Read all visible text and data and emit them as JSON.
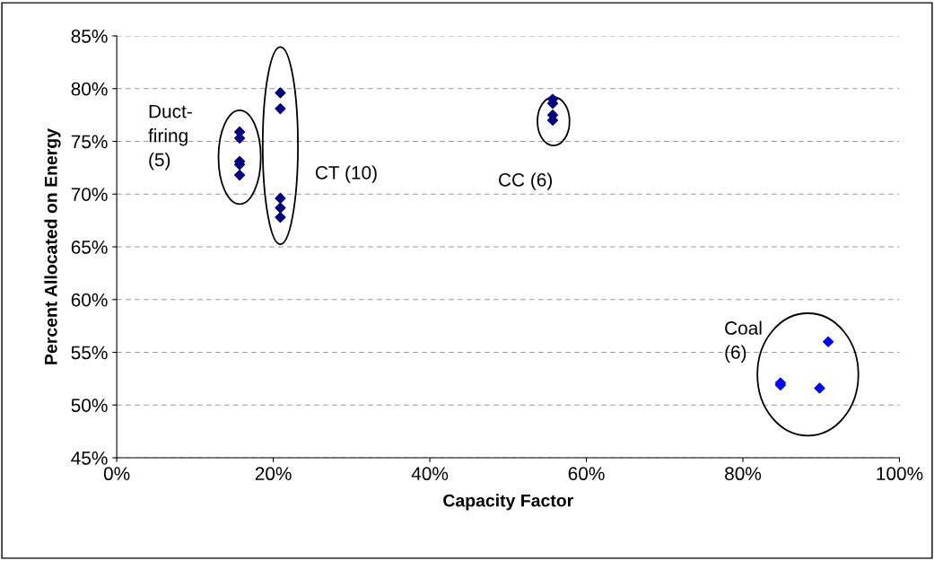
{
  "chart_data": {
    "type": "scatter",
    "xlabel": "Capacity Factor",
    "ylabel": "Percent Allocated on Energy",
    "series": [
      {
        "color": "#000080",
        "x": [
          15.7,
          15.7,
          15.7,
          15.7,
          15.7,
          20.9,
          20.9,
          20.9,
          20.9,
          20.9,
          55.7,
          55.7,
          55.7,
          55.7
        ],
        "values": [
          75.9,
          75.3,
          73.1,
          72.8,
          71.8,
          79.6,
          78.1,
          69.6,
          68.7,
          67.8,
          79.0,
          78.6,
          77.5,
          77.0
        ]
      },
      {
        "color": "#0000ff",
        "x": [
          84.8,
          84.8,
          89.8,
          90.9
        ],
        "values": [
          51.9,
          52.1,
          51.6,
          56.0
        ]
      }
    ],
    "marker": "diamond",
    "grid": "y",
    "xlim": [
      0,
      100
    ],
    "xticks": [
      {
        "value": 0,
        "label": "0%"
      },
      {
        "value": 20,
        "label": "20%"
      },
      {
        "value": 40,
        "label": "40%"
      },
      {
        "value": 60,
        "label": "60%"
      },
      {
        "value": 80,
        "label": "80%"
      },
      {
        "value": 100,
        "label": "100%"
      }
    ],
    "ylim": [
      45,
      85
    ],
    "yticks": [
      {
        "value": 45,
        "label": "45%"
      },
      {
        "value": 50,
        "label": "50%"
      },
      {
        "value": 55,
        "label": "55%"
      },
      {
        "value": 60,
        "label": "60%"
      },
      {
        "value": 65,
        "label": "65%"
      },
      {
        "value": 70,
        "label": "70%"
      },
      {
        "value": 75,
        "label": "75%"
      },
      {
        "value": 80,
        "label": "80%"
      },
      {
        "value": 85,
        "label": "85%"
      }
    ],
    "annotations": [
      "Duct-\nfiring\n(5)",
      "CT (10)",
      "CC (6)",
      "Coal\n(6)"
    ]
  }
}
